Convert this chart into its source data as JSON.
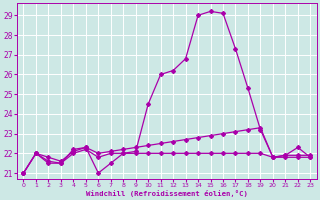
{
  "xlabel": "Windchill (Refroidissement éolien,°C)",
  "background_color": "#cde8e5",
  "grid_color": "#ffffff",
  "line_color": "#aa00aa",
  "xlim_min": -0.5,
  "xlim_max": 23.5,
  "ylim_min": 20.7,
  "ylim_max": 29.6,
  "yticks": [
    21,
    22,
    23,
    24,
    25,
    26,
    27,
    28,
    29
  ],
  "xticks": [
    0,
    1,
    2,
    3,
    4,
    5,
    6,
    7,
    8,
    9,
    10,
    11,
    12,
    13,
    14,
    15,
    16,
    17,
    18,
    19,
    20,
    21,
    22,
    23
  ],
  "line1_x": [
    0,
    1,
    2,
    3,
    4,
    5,
    6,
    7,
    8,
    9,
    10,
    11,
    12,
    13,
    14,
    15,
    16,
    17,
    18,
    19,
    20,
    21,
    22,
    23
  ],
  "line1_y": [
    21.0,
    22.0,
    21.5,
    21.5,
    22.2,
    22.3,
    21.0,
    21.5,
    22.0,
    22.1,
    24.5,
    26.0,
    26.2,
    26.8,
    29.0,
    29.2,
    29.1,
    27.3,
    25.3,
    23.2,
    21.8,
    21.9,
    22.3,
    21.8
  ],
  "line2_x": [
    0,
    1,
    2,
    3,
    4,
    5,
    6,
    7,
    8,
    9,
    10,
    11,
    12,
    13,
    14,
    15,
    16,
    17,
    18,
    19,
    20,
    21,
    22,
    23
  ],
  "line2_y": [
    21.0,
    22.0,
    21.8,
    21.6,
    22.1,
    22.3,
    22.0,
    22.1,
    22.2,
    22.3,
    22.4,
    22.5,
    22.6,
    22.7,
    22.8,
    22.9,
    23.0,
    23.1,
    23.2,
    23.3,
    21.8,
    21.9,
    21.9,
    21.9
  ],
  "line3_x": [
    0,
    1,
    2,
    3,
    4,
    5,
    6,
    7,
    8,
    9,
    10,
    11,
    12,
    13,
    14,
    15,
    16,
    17,
    18,
    19,
    20,
    21,
    22,
    23
  ],
  "line3_y": [
    21.0,
    22.0,
    21.6,
    21.5,
    22.0,
    22.2,
    21.8,
    22.0,
    22.0,
    22.0,
    22.0,
    22.0,
    22.0,
    22.0,
    22.0,
    22.0,
    22.0,
    22.0,
    22.0,
    22.0,
    21.8,
    21.8,
    21.8,
    21.8
  ]
}
